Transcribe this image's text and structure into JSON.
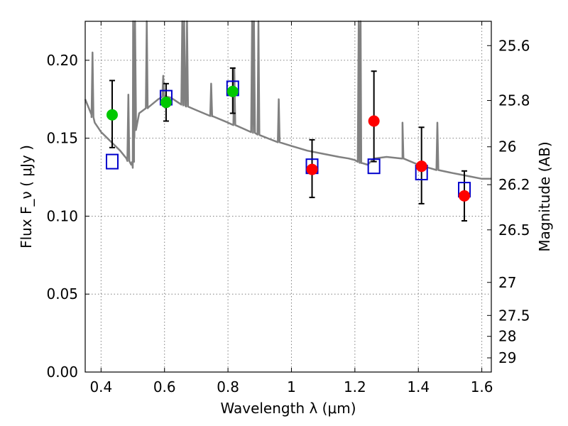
{
  "chart_data": {
    "type": "scatter",
    "title": "",
    "xlabel": "Wavelength  λ (μm)",
    "ylabel_left": "Flux  F_ν  ( μJy )",
    "ylabel_right": "Magnitude (AB)",
    "xlim": [
      0.35,
      1.63
    ],
    "ylim": [
      0.0,
      0.225
    ],
    "grid": true,
    "legend": "none",
    "x_ticks": [
      0.4,
      0.6,
      0.8,
      1.0,
      1.2,
      1.4,
      1.6
    ],
    "x_tick_labels": [
      "0.4",
      "0.6",
      "0.8",
      "1",
      "1.2",
      "1.4",
      "1.6"
    ],
    "y_ticks": [
      0.0,
      0.05,
      0.1,
      0.15,
      0.2
    ],
    "y_tick_labels": [
      "0.00",
      "0.05",
      "0.10",
      "0.15",
      "0.20"
    ],
    "mag_ticks": [
      {
        "label": "25.6",
        "flux": 0.2094
      },
      {
        "label": "25.8",
        "flux": 0.1742
      },
      {
        "label": "26",
        "flux": 0.1445
      },
      {
        "label": "26.2",
        "flux": 0.1202
      },
      {
        "label": "26.5",
        "flux": 0.0912
      },
      {
        "label": "27",
        "flux": 0.0575
      },
      {
        "label": "27.5",
        "flux": 0.0363
      },
      {
        "label": "28",
        "flux": 0.0229
      },
      {
        "label": "29",
        "flux": 0.0091
      }
    ],
    "series": [
      {
        "kind": "model-spectrum",
        "color": "#808080",
        "x": [
          0.35,
          0.36,
          0.37,
          0.38,
          0.39,
          0.4,
          0.42,
          0.44,
          0.46,
          0.48,
          0.495,
          0.5,
          0.505,
          0.51,
          0.52,
          0.55,
          0.58,
          0.6,
          0.62,
          0.65,
          0.7,
          0.75,
          0.8,
          0.85,
          0.9,
          0.95,
          1.0,
          1.05,
          1.1,
          1.15,
          1.18,
          1.2,
          1.22,
          1.24,
          1.26,
          1.3,
          1.35,
          1.4,
          1.45,
          1.5,
          1.55,
          1.6,
          1.63
        ],
        "y": [
          0.175,
          0.17,
          0.165,
          0.16,
          0.157,
          0.154,
          0.15,
          0.146,
          0.142,
          0.137,
          0.133,
          0.131,
          0.15,
          0.163,
          0.166,
          0.17,
          0.175,
          0.177,
          0.176,
          0.172,
          0.168,
          0.164,
          0.16,
          0.156,
          0.152,
          0.148,
          0.145,
          0.142,
          0.14,
          0.138,
          0.137,
          0.136,
          0.134,
          0.133,
          0.137,
          0.138,
          0.137,
          0.133,
          0.13,
          0.128,
          0.126,
          0.124,
          0.124
        ],
        "emission_lines": [
          {
            "x": 0.373,
            "peak": 0.205
          },
          {
            "x": 0.486,
            "peak": 0.178
          },
          {
            "x": 0.501,
            "peak": 0.225
          },
          {
            "x": 0.507,
            "peak": 0.225
          },
          {
            "x": 0.544,
            "peak": 0.225
          },
          {
            "x": 0.596,
            "peak": 0.19
          },
          {
            "x": 0.656,
            "peak": 0.225
          },
          {
            "x": 0.662,
            "peak": 0.225
          },
          {
            "x": 0.671,
            "peak": 0.225
          },
          {
            "x": 0.747,
            "peak": 0.185
          },
          {
            "x": 0.82,
            "peak": 0.195
          },
          {
            "x": 0.876,
            "peak": 0.225
          },
          {
            "x": 0.882,
            "peak": 0.225
          },
          {
            "x": 0.896,
            "peak": 0.225
          },
          {
            "x": 0.96,
            "peak": 0.175
          },
          {
            "x": 1.212,
            "peak": 0.225
          },
          {
            "x": 1.218,
            "peak": 0.225
          },
          {
            "x": 1.35,
            "peak": 0.16
          },
          {
            "x": 1.46,
            "peak": 0.16
          }
        ]
      },
      {
        "kind": "observed-optical",
        "color": "#00c800",
        "x": [
          0.435,
          0.605,
          0.815
        ],
        "y": [
          0.165,
          0.173,
          0.18
        ],
        "yerr_low": [
          0.144,
          0.161,
          0.166
        ],
        "yerr_high": [
          0.187,
          0.185,
          0.195
        ]
      },
      {
        "kind": "observed-nir",
        "color": "#ff0000",
        "x": [
          1.065,
          1.26,
          1.41,
          1.545
        ],
        "y": [
          0.13,
          0.161,
          0.132,
          0.113
        ],
        "yerr_low": [
          0.112,
          0.135,
          0.108,
          0.097
        ],
        "yerr_high": [
          0.149,
          0.193,
          0.157,
          0.129
        ]
      },
      {
        "kind": "model-bandpass",
        "color": "#0000cc",
        "x": [
          0.435,
          0.605,
          0.815,
          1.065,
          1.26,
          1.41,
          1.545
        ],
        "y": [
          0.135,
          0.176,
          0.182,
          0.132,
          0.132,
          0.128,
          0.117
        ]
      }
    ]
  }
}
